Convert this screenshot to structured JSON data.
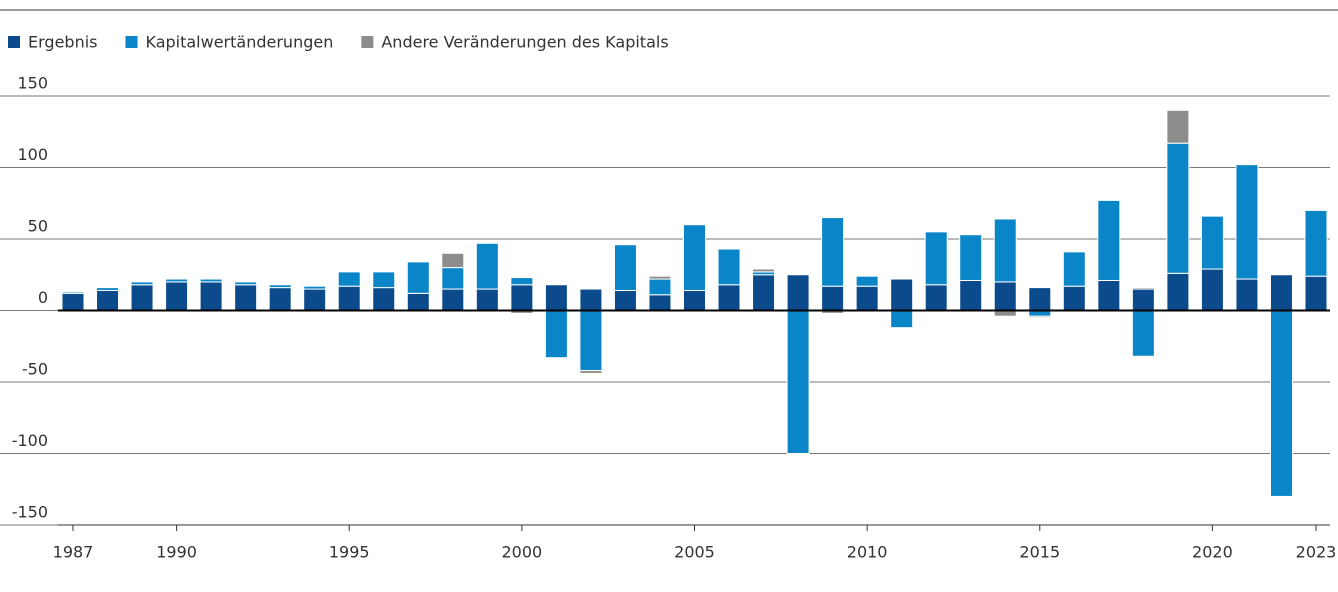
{
  "chart_data": {
    "type": "bar",
    "stacked": true,
    "x": [
      1987,
      1988,
      1989,
      1990,
      1991,
      1992,
      1993,
      1994,
      1995,
      1996,
      1997,
      1998,
      1999,
      2000,
      2001,
      2002,
      2003,
      2004,
      2005,
      2006,
      2007,
      2008,
      2009,
      2010,
      2011,
      2012,
      2013,
      2014,
      2015,
      2016,
      2017,
      2018,
      2019,
      2020,
      2021,
      2022,
      2023
    ],
    "series": [
      {
        "name": "Ergebnis",
        "color": "#0b4a8b",
        "values": [
          12,
          14,
          18,
          20,
          20,
          18,
          16,
          15,
          17,
          16,
          12,
          15,
          15,
          18,
          18,
          15,
          14,
          11,
          14,
          18,
          25,
          25,
          17,
          17,
          22,
          18,
          21,
          20,
          16,
          17,
          21,
          15,
          26,
          29,
          22,
          25,
          24
        ]
      },
      {
        "name": "Kapitalwertänderungen",
        "color": "#0a86c8",
        "values": [
          1,
          2,
          2,
          2,
          2,
          2,
          2,
          2,
          10,
          11,
          22,
          15,
          32,
          5,
          -33,
          -42,
          32,
          11,
          46,
          25,
          2,
          -100,
          48,
          7,
          -12,
          37,
          32,
          44,
          -4,
          24,
          56,
          -32,
          91,
          37,
          80,
          -130,
          46
        ]
      },
      {
        "name": "Andere Veränderungen des Kapitals",
        "color": "#8c8c8c",
        "values": [
          0,
          0,
          0,
          0,
          0,
          0,
          0,
          0,
          0,
          0,
          0,
          10,
          0,
          -2,
          0,
          -2,
          0,
          2,
          0,
          0,
          2,
          0,
          -2,
          0,
          0,
          0,
          0,
          -4,
          -1,
          -1,
          0,
          1,
          23,
          0,
          0,
          0,
          0
        ]
      }
    ],
    "xlim": [
      1987,
      2023
    ],
    "xticks": [
      1987,
      1990,
      1995,
      2000,
      2005,
      2010,
      2015,
      2020,
      2023
    ],
    "ylim": [
      -150,
      150
    ],
    "yticks": [
      -150,
      -100,
      -50,
      0,
      50,
      100,
      150
    ],
    "grid": true,
    "legend": "top-left"
  }
}
